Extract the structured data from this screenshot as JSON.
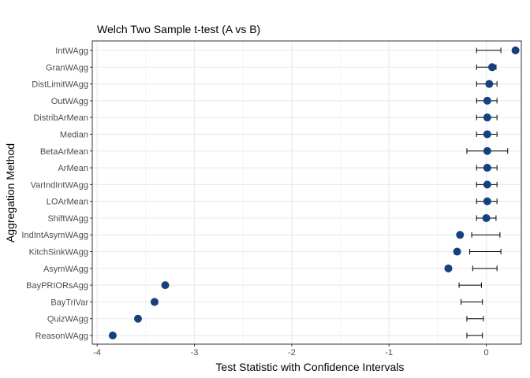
{
  "chart_data": {
    "type": "scatter",
    "title": "Welch Two Sample t-test (A vs B)",
    "xlabel": "Test Statistic with Confidence Intervals",
    "ylabel": "Aggregation Method",
    "xlim": [
      -4.05,
      0.36
    ],
    "xticks": [
      -4,
      -3,
      -2,
      -1,
      0
    ],
    "xtick_labels": [
      "-4",
      "-3",
      "-2",
      "-1",
      "0"
    ],
    "grid": true,
    "legend": "none",
    "colors": {
      "point": "#15417e",
      "errorbar": "#000000",
      "grid": "#ebebeb",
      "panel_border": "#333333"
    },
    "categories": [
      "IntWAgg",
      "GranWAgg",
      "DistLimitWAgg",
      "OutWAgg",
      "DistribArMean",
      "Median",
      "BetaArMean",
      "ArMean",
      "VarIndIntWAgg",
      "LOArMean",
      "ShiftWAgg",
      "IndIntAsymWAgg",
      "KitchSinkWAgg",
      "AsymWAgg",
      "BayPRIORsAgg",
      "BayTriVar",
      "QuizWAgg",
      "ReasonWAgg"
    ],
    "points": [
      {
        "category": "IntWAgg",
        "x": 0.3,
        "ci": [
          -0.1,
          0.15
        ]
      },
      {
        "category": "GranWAgg",
        "x": 0.06,
        "ci": [
          -0.1,
          0.1
        ]
      },
      {
        "category": "DistLimitWAgg",
        "x": 0.03,
        "ci": [
          -0.1,
          0.11
        ]
      },
      {
        "category": "OutWAgg",
        "x": 0.01,
        "ci": [
          -0.1,
          0.11
        ]
      },
      {
        "category": "DistribArMean",
        "x": 0.01,
        "ci": [
          -0.1,
          0.11
        ]
      },
      {
        "category": "Median",
        "x": 0.01,
        "ci": [
          -0.1,
          0.11
        ]
      },
      {
        "category": "BetaArMean",
        "x": 0.01,
        "ci": [
          -0.2,
          0.22
        ]
      },
      {
        "category": "ArMean",
        "x": 0.01,
        "ci": [
          -0.1,
          0.11
        ]
      },
      {
        "category": "VarIndIntWAgg",
        "x": 0.01,
        "ci": [
          -0.1,
          0.11
        ]
      },
      {
        "category": "LOArMean",
        "x": 0.01,
        "ci": [
          -0.1,
          0.11
        ]
      },
      {
        "category": "ShiftWAgg",
        "x": 0.0,
        "ci": [
          -0.1,
          0.1
        ]
      },
      {
        "category": "IndIntAsymWAgg",
        "x": -0.27,
        "ci": [
          -0.15,
          0.14
        ]
      },
      {
        "category": "KitchSinkWAgg",
        "x": -0.3,
        "ci": [
          -0.17,
          0.15
        ]
      },
      {
        "category": "AsymWAgg",
        "x": -0.39,
        "ci": [
          -0.14,
          0.11
        ]
      },
      {
        "category": "BayPRIORsAgg",
        "x": -3.3,
        "ci": [
          -0.28,
          -0.05
        ]
      },
      {
        "category": "BayTriVar",
        "x": -3.41,
        "ci": [
          -0.26,
          -0.04
        ]
      },
      {
        "category": "QuizWAgg",
        "x": -3.58,
        "ci": [
          -0.2,
          -0.03
        ]
      },
      {
        "category": "ReasonWAgg",
        "x": -3.84,
        "ci": [
          -0.2,
          -0.04
        ]
      }
    ]
  }
}
